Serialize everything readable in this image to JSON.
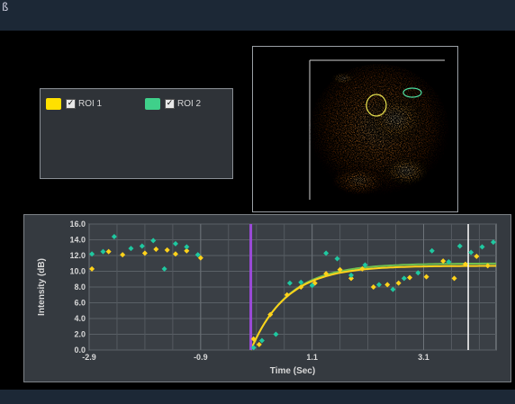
{
  "window": {
    "corner_glyph": "ß"
  },
  "legend": {
    "items": [
      {
        "label": "ROI 1",
        "color": "#ffe000",
        "checked": true
      },
      {
        "label": "ROI 2",
        "color": "#3fd08a",
        "checked": true
      }
    ]
  },
  "colors": {
    "roi1": "#ffd21a",
    "roi2": "#1fc8a0",
    "marker": "#9a4ad8",
    "cursor": "#ffffff",
    "fit": "#6fc050"
  },
  "chart_data": {
    "type": "scatter",
    "xlabel": "Time (Sec)",
    "ylabel": "Intensity (dB)",
    "xlim": [
      -2.9,
      4.4
    ],
    "ylim": [
      0,
      16
    ],
    "x_ticks": [
      -2.9,
      -0.9,
      1.1,
      3.1
    ],
    "x_tick_labels": [
      "-2.9",
      "-0.9",
      "1.1",
      "3.1"
    ],
    "y_ticks": [
      0,
      2,
      4,
      6,
      8,
      10,
      12,
      14,
      16
    ],
    "y_tick_labels": [
      "0.0",
      "2.0",
      "4.0",
      "6.0",
      "8.0",
      "10.0",
      "12.0",
      "14.0",
      "16.0"
    ],
    "grid": true,
    "marker_line_x": 0.0,
    "cursor_line_x": 3.9,
    "series": [
      {
        "x": [
          -2.85,
          -2.55,
          -2.3,
          -1.9,
          -1.7,
          -1.5,
          -1.35,
          -1.15,
          -0.9,
          0.05,
          0.15,
          0.35,
          0.65,
          0.9,
          1.15,
          1.35,
          1.6,
          1.8,
          2.0,
          2.2,
          2.45,
          2.65,
          2.85,
          3.15,
          3.45,
          3.65,
          3.85,
          4.05,
          4.25
        ],
        "y": [
          10.3,
          12.5,
          12.1,
          12.3,
          12.8,
          12.7,
          12.2,
          12.6,
          11.7,
          1.4,
          0.7,
          4.5,
          7.0,
          8.0,
          8.5,
          9.7,
          10.2,
          9.1,
          10.3,
          8.0,
          8.3,
          8.5,
          9.2,
          9.3,
          11.3,
          9.1,
          10.9,
          11.9,
          10.7
        ]
      },
      {
        "x": [
          -2.85,
          -2.65,
          -2.45,
          -2.15,
          -1.95,
          -1.75,
          -1.55,
          -1.35,
          -1.15,
          -0.95,
          0.05,
          0.2,
          0.45,
          0.7,
          0.9,
          1.1,
          1.35,
          1.55,
          1.8,
          2.05,
          2.3,
          2.55,
          2.75,
          3.0,
          3.25,
          3.55,
          3.75,
          3.95,
          4.15,
          4.35
        ],
        "y": [
          12.2,
          12.5,
          14.4,
          12.9,
          13.2,
          13.9,
          10.3,
          13.5,
          13.1,
          12.1,
          0.3,
          1.2,
          2.0,
          8.5,
          8.6,
          8.2,
          12.3,
          11.6,
          9.5,
          10.8,
          8.3,
          7.7,
          9.1,
          9.8,
          12.6,
          11.2,
          13.2,
          12.4,
          13.1,
          13.7
        ]
      }
    ]
  }
}
